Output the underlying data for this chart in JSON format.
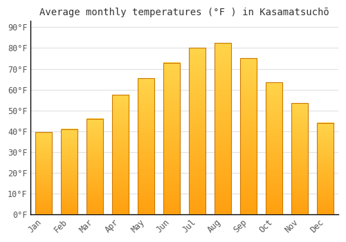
{
  "title": "Average monthly temperatures (°F ) in Kasamatsuchō",
  "months": [
    "Jan",
    "Feb",
    "Mar",
    "Apr",
    "May",
    "Jun",
    "Jul",
    "Aug",
    "Sep",
    "Oct",
    "Nov",
    "Dec"
  ],
  "values": [
    39.5,
    41.0,
    46.0,
    57.5,
    65.5,
    73.0,
    80.0,
    82.5,
    75.0,
    63.5,
    53.5,
    44.0
  ],
  "bar_color_top": "#FFD44A",
  "bar_color_bottom": "#FFA010",
  "bar_edge_color": "#CC7700",
  "background_color": "#FFFFFF",
  "grid_color": "#E0E0E0",
  "yticks": [
    0,
    10,
    20,
    30,
    40,
    50,
    60,
    70,
    80,
    90
  ],
  "ylim": [
    0,
    93
  ],
  "title_fontsize": 10,
  "tick_fontsize": 8.5,
  "tick_label_color": "#555555"
}
